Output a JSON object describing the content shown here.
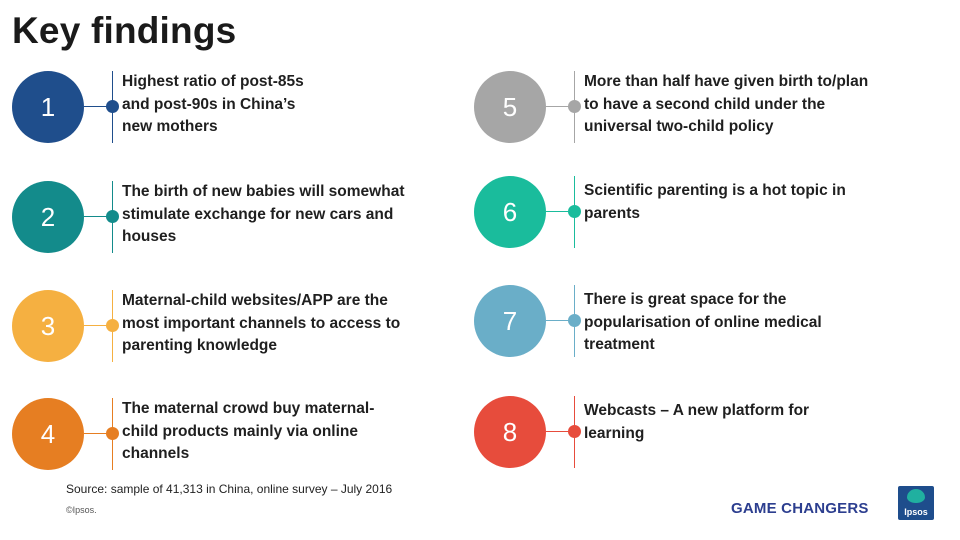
{
  "title": "Key findings",
  "findings": [
    {
      "num": "1",
      "text": "Highest ratio of post-85s\nand post-90s in China’s\nnew mothers",
      "color": "#1f4e8c"
    },
    {
      "num": "2",
      "text": "The birth of new babies will somewhat\nstimulate exchange  for new cars and\nhouses",
      "color": "#138b8b"
    },
    {
      "num": "3",
      "text": "Maternal-child websites/APP are the\nmost important channels  to access to\nparenting knowledge",
      "color": "#f5b041"
    },
    {
      "num": "4",
      "text": "The maternal crowd buy maternal-\nchild products mainly via  online\nchannels",
      "color": "#e67e22"
    },
    {
      "num": "5",
      "text": "More than half have given birth to/plan\nto have a second child  under the\nuniversal two-child policy",
      "color": "#a6a6a6"
    },
    {
      "num": "6",
      "text": "Scientific parenting is a hot topic in\nparents",
      "color": "#1abc9c"
    },
    {
      "num": "7",
      "text": "There is great space for the\npopularisation of online medical\ntreatment",
      "color": "#6aaec8"
    },
    {
      "num": "8",
      "text": "Webcasts – A new platform for\nlearning",
      "color": "#e74c3c"
    }
  ],
  "source": "Source: sample of 41,313 in China, online survey – July 2016",
  "copyright": "©Ipsos.",
  "game_changers": "GAME CHANGERS",
  "logo_text": "Ipsos"
}
